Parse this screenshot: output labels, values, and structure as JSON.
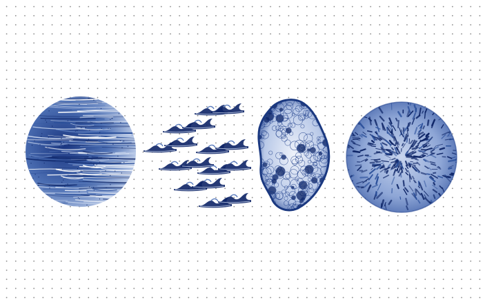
{
  "palette": {
    "navy": "#0d2466",
    "blue": "#2a4f9a",
    "mid": "#5e7fbf",
    "light": "#c5d3ec",
    "pale": "#e8eef8",
    "dot": "#8a8a8a"
  },
  "figures": [
    {
      "name": "streaked-sphere"
    },
    {
      "name": "wave-flock"
    },
    {
      "name": "cellular-blob"
    },
    {
      "name": "fibrous-sphere"
    }
  ]
}
